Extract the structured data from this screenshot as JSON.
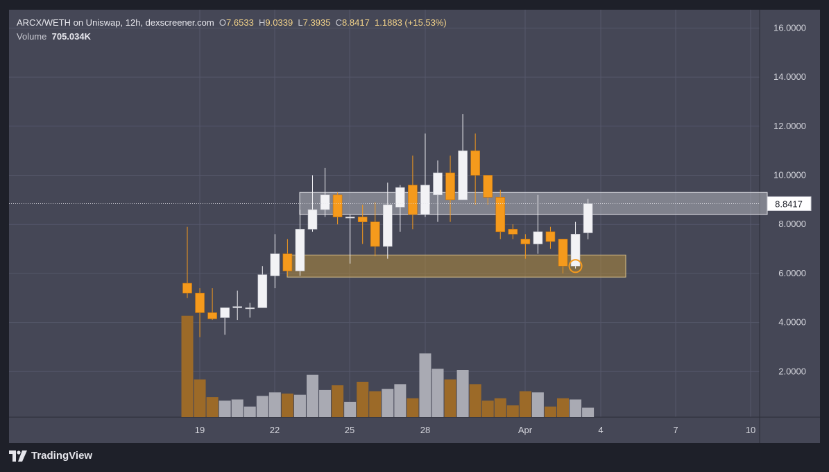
{
  "header": {
    "pair": "ARCX/WETH on Uniswap, 12h, dexscreener.com",
    "open_label": "O",
    "open_value": "7.6533",
    "high_label": "H",
    "high_value": "9.0339",
    "low_label": "L",
    "low_value": "7.3935",
    "close_label": "C",
    "close_value": "8.8417",
    "change_value": "1.1883 (+15.53%)",
    "volume_label": "Volume",
    "volume_value": "705.034K"
  },
  "brand": {
    "name": "TradingView"
  },
  "colors": {
    "panel_bg": "#454756",
    "up": "#f2f2f5",
    "down": "#f59a1c",
    "volume_up": "#a9aab3",
    "volume_down": "#9c6a28",
    "grid": "#55576a",
    "axis_text": "#d4d5dc",
    "resistance_zone": "#c8c9d0",
    "support_zone": "#b08a3e"
  },
  "chart_data": {
    "type": "candlestick",
    "title": "ARCX/WETH on Uniswap, 12h, dexscreener.com",
    "y_axis": {
      "ticks": [
        "16.0000",
        "14.0000",
        "12.0000",
        "10.0000",
        "8.0000",
        "6.0000",
        "4.0000",
        "2.0000"
      ],
      "range": [
        0,
        16.6
      ]
    },
    "x_axis": {
      "ticks": [
        "19",
        "22",
        "25",
        "28",
        "Apr",
        "4",
        "7",
        "10"
      ]
    },
    "grid": true,
    "last_price_label": "8.8417",
    "candles": [
      {
        "x": 0,
        "o": 5.6,
        "h": 7.9,
        "l": 5.0,
        "c": 5.2
      },
      {
        "x": 1,
        "o": 5.2,
        "h": 5.4,
        "l": 3.4,
        "c": 4.4
      },
      {
        "x": 2,
        "o": 4.4,
        "h": 5.4,
        "l": 4.1,
        "c": 4.15
      },
      {
        "x": 3,
        "o": 4.2,
        "h": 4.6,
        "l": 3.5,
        "c": 4.6
      },
      {
        "x": 4,
        "o": 4.6,
        "h": 5.3,
        "l": 4.1,
        "c": 4.65
      },
      {
        "x": 5,
        "o": 4.6,
        "h": 4.8,
        "l": 4.2,
        "c": 4.6
      },
      {
        "x": 6,
        "o": 4.6,
        "h": 6.3,
        "l": 4.6,
        "c": 5.95
      },
      {
        "x": 7,
        "o": 5.9,
        "h": 7.6,
        "l": 5.4,
        "c": 6.8
      },
      {
        "x": 8,
        "o": 6.8,
        "h": 7.4,
        "l": 5.9,
        "c": 6.1
      },
      {
        "x": 9,
        "o": 6.1,
        "h": 8.6,
        "l": 5.9,
        "c": 7.8
      },
      {
        "x": 10,
        "o": 7.8,
        "h": 10.0,
        "l": 7.7,
        "c": 8.6
      },
      {
        "x": 11,
        "o": 8.6,
        "h": 10.3,
        "l": 8.3,
        "c": 9.2
      },
      {
        "x": 12,
        "o": 9.2,
        "h": 9.3,
        "l": 8.0,
        "c": 8.3
      },
      {
        "x": 13,
        "o": 8.3,
        "h": 8.4,
        "l": 6.4,
        "c": 8.3
      },
      {
        "x": 14,
        "o": 8.3,
        "h": 8.8,
        "l": 7.2,
        "c": 8.1
      },
      {
        "x": 15,
        "o": 8.1,
        "h": 8.9,
        "l": 6.7,
        "c": 7.1
      },
      {
        "x": 16,
        "o": 7.1,
        "h": 9.7,
        "l": 6.6,
        "c": 8.8
      },
      {
        "x": 17,
        "o": 8.7,
        "h": 9.6,
        "l": 7.7,
        "c": 9.5
      },
      {
        "x": 18,
        "o": 9.6,
        "h": 10.8,
        "l": 7.8,
        "c": 8.4
      },
      {
        "x": 19,
        "o": 8.4,
        "h": 11.7,
        "l": 8.3,
        "c": 9.6
      },
      {
        "x": 20,
        "o": 9.2,
        "h": 10.6,
        "l": 8.1,
        "c": 10.1
      },
      {
        "x": 21,
        "o": 10.1,
        "h": 10.8,
        "l": 8.1,
        "c": 9.0
      },
      {
        "x": 22,
        "o": 9.0,
        "h": 12.5,
        "l": 9.0,
        "c": 11.0
      },
      {
        "x": 23,
        "o": 11.0,
        "h": 11.7,
        "l": 8.8,
        "c": 10.0
      },
      {
        "x": 24,
        "o": 10.0,
        "h": 10.0,
        "l": 8.8,
        "c": 9.1
      },
      {
        "x": 25,
        "o": 9.1,
        "h": 9.4,
        "l": 7.4,
        "c": 7.7
      },
      {
        "x": 26,
        "o": 7.8,
        "h": 8.0,
        "l": 7.4,
        "c": 7.6
      },
      {
        "x": 27,
        "o": 7.4,
        "h": 7.6,
        "l": 6.6,
        "c": 7.2
      },
      {
        "x": 28,
        "o": 7.2,
        "h": 9.2,
        "l": 6.8,
        "c": 7.7
      },
      {
        "x": 29,
        "o": 7.7,
        "h": 7.9,
        "l": 7.0,
        "c": 7.3
      },
      {
        "x": 30,
        "o": 7.4,
        "h": 7.4,
        "l": 6.0,
        "c": 6.3
      },
      {
        "x": 31,
        "o": 6.3,
        "h": 8.1,
        "l": 6.2,
        "c": 7.6
      },
      {
        "x": 32,
        "o": 7.6533,
        "h": 9.0339,
        "l": 7.3935,
        "c": 8.8417
      }
    ],
    "volume": [
      4.3,
      1.6,
      0.85,
      0.7,
      0.75,
      0.45,
      0.9,
      1.05,
      1.0,
      0.95,
      1.8,
      1.15,
      1.35,
      0.65,
      1.5,
      1.1,
      1.2,
      1.4,
      0.8,
      2.7,
      2.05,
      1.6,
      2.0,
      1.4,
      0.7,
      0.8,
      0.5,
      1.1,
      1.05,
      0.45,
      0.8,
      0.75,
      0.4
    ],
    "zones": [
      {
        "name": "resistance",
        "y_low": 8.4,
        "y_high": 9.3
      },
      {
        "name": "support",
        "y_low": 5.85,
        "y_high": 6.75
      }
    ],
    "marker": {
      "x": 31,
      "y": 6.3
    }
  }
}
